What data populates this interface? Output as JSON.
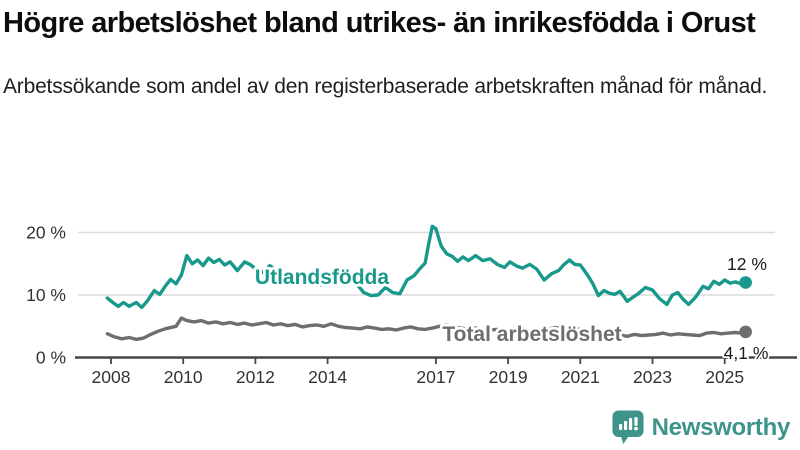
{
  "header": {
    "title": "Högre arbetslöshet bland utrikes- än inrikesfödda i Orust",
    "subtitle": "Arbetssökande som andel av den registerbaserade arbetskraften månad för månad."
  },
  "footer": {
    "brand": "Newsworthy"
  },
  "colors": {
    "accent_teal": "#18998C",
    "line_gray": "#6E6E6E",
    "grid": "#DBDBDB",
    "axis": "#474747",
    "text_dark": "#1a1a1a",
    "tick_text": "#333333",
    "logo_teal": "#3E948B",
    "halo": "#ffffff"
  },
  "chart_data": {
    "type": "line",
    "title": "Högre arbetslöshet bland utrikes- än inrikesfödda i Orust",
    "subtitle": "Arbetssökande som andel av den registerbaserade arbetskraften månad för månad.",
    "xlabel": "",
    "ylabel": "",
    "unit": "%",
    "xlim": [
      2007.8,
      2026.0
    ],
    "ylim": [
      0,
      22
    ],
    "grid": "horizontal",
    "legend": "inline-labels",
    "x_ticks": [
      {
        "t": 2008,
        "label": "2008"
      },
      {
        "t": 2010,
        "label": "2010"
      },
      {
        "t": 2012,
        "label": "2012"
      },
      {
        "t": 2014,
        "label": "2014"
      },
      {
        "t": 2017,
        "label": "2017"
      },
      {
        "t": 2019,
        "label": "2019"
      },
      {
        "t": 2021,
        "label": "2021"
      },
      {
        "t": 2023,
        "label": "2023"
      },
      {
        "t": 2025,
        "label": "2025"
      }
    ],
    "y_ticks": [
      {
        "v": 0,
        "label": "0 %"
      },
      {
        "v": 10,
        "label": "10 %"
      },
      {
        "v": 20,
        "label": "20 %"
      }
    ],
    "series": [
      {
        "name": "Total arbetslöshet",
        "color": "#6E6E6E",
        "end_annotation": "4,1 %",
        "end_value": 4.1,
        "points": [
          [
            2007.9,
            3.8
          ],
          [
            2008.1,
            3.3
          ],
          [
            2008.3,
            3.0
          ],
          [
            2008.5,
            3.2
          ],
          [
            2008.7,
            2.9
          ],
          [
            2008.9,
            3.1
          ],
          [
            2009.1,
            3.7
          ],
          [
            2009.3,
            4.2
          ],
          [
            2009.5,
            4.6
          ],
          [
            2009.8,
            5.0
          ],
          [
            2009.95,
            6.3
          ],
          [
            2010.1,
            5.9
          ],
          [
            2010.3,
            5.7
          ],
          [
            2010.5,
            5.9
          ],
          [
            2010.7,
            5.5
          ],
          [
            2010.9,
            5.7
          ],
          [
            2011.1,
            5.4
          ],
          [
            2011.3,
            5.6
          ],
          [
            2011.5,
            5.3
          ],
          [
            2011.7,
            5.5
          ],
          [
            2011.9,
            5.2
          ],
          [
            2012.1,
            5.4
          ],
          [
            2012.3,
            5.6
          ],
          [
            2012.5,
            5.2
          ],
          [
            2012.7,
            5.4
          ],
          [
            2012.9,
            5.1
          ],
          [
            2013.1,
            5.3
          ],
          [
            2013.3,
            4.9
          ],
          [
            2013.5,
            5.1
          ],
          [
            2013.7,
            5.2
          ],
          [
            2013.9,
            5.0
          ],
          [
            2014.1,
            5.4
          ],
          [
            2014.3,
            5.0
          ],
          [
            2014.5,
            4.8
          ],
          [
            2014.7,
            4.7
          ],
          [
            2014.9,
            4.6
          ],
          [
            2015.1,
            4.9
          ],
          [
            2015.3,
            4.7
          ],
          [
            2015.5,
            4.5
          ],
          [
            2015.7,
            4.6
          ],
          [
            2015.9,
            4.4
          ],
          [
            2016.1,
            4.7
          ],
          [
            2016.3,
            4.9
          ],
          [
            2016.5,
            4.6
          ],
          [
            2016.7,
            4.5
          ],
          [
            2016.9,
            4.7
          ],
          [
            2017.1,
            5.0
          ],
          [
            2017.3,
            5.2
          ],
          [
            2017.5,
            4.9
          ],
          [
            2017.7,
            4.7
          ],
          [
            2017.9,
            4.5
          ],
          [
            2018.1,
            4.7
          ],
          [
            2018.3,
            4.5
          ],
          [
            2018.5,
            4.4
          ],
          [
            2018.7,
            4.5
          ],
          [
            2018.9,
            4.3
          ],
          [
            2019.1,
            4.5
          ],
          [
            2019.3,
            4.2
          ],
          [
            2019.5,
            4.1
          ],
          [
            2019.7,
            4.2
          ],
          [
            2019.9,
            4.3
          ],
          [
            2020.1,
            4.5
          ],
          [
            2020.3,
            4.8
          ],
          [
            2020.5,
            4.6
          ],
          [
            2020.7,
            4.5
          ],
          [
            2020.9,
            4.6
          ],
          [
            2021.1,
            4.4
          ],
          [
            2021.3,
            4.2
          ],
          [
            2021.5,
            4.0
          ],
          [
            2021.7,
            3.8
          ],
          [
            2021.9,
            3.7
          ],
          [
            2022.1,
            3.6
          ],
          [
            2022.3,
            3.4
          ],
          [
            2022.5,
            3.7
          ],
          [
            2022.7,
            3.5
          ],
          [
            2022.9,
            3.6
          ],
          [
            2023.1,
            3.7
          ],
          [
            2023.3,
            3.9
          ],
          [
            2023.5,
            3.6
          ],
          [
            2023.7,
            3.8
          ],
          [
            2023.9,
            3.7
          ],
          [
            2024.1,
            3.6
          ],
          [
            2024.3,
            3.5
          ],
          [
            2024.5,
            3.9
          ],
          [
            2024.7,
            4.0
          ],
          [
            2024.9,
            3.8
          ],
          [
            2025.1,
            3.9
          ],
          [
            2025.3,
            4.0
          ],
          [
            2025.45,
            3.9
          ],
          [
            2025.58,
            4.1
          ]
        ]
      },
      {
        "name": "Utlandsfödda",
        "color": "#18998C",
        "end_annotation": "12 %",
        "end_value": 12,
        "points": [
          [
            2007.9,
            9.5
          ],
          [
            2008.05,
            8.8
          ],
          [
            2008.2,
            8.2
          ],
          [
            2008.35,
            8.8
          ],
          [
            2008.5,
            8.2
          ],
          [
            2008.7,
            8.8
          ],
          [
            2008.85,
            8.0
          ],
          [
            2009.0,
            9.0
          ],
          [
            2009.2,
            10.7
          ],
          [
            2009.35,
            10.1
          ],
          [
            2009.5,
            11.4
          ],
          [
            2009.65,
            12.5
          ],
          [
            2009.8,
            11.8
          ],
          [
            2009.95,
            13.2
          ],
          [
            2010.1,
            16.3
          ],
          [
            2010.25,
            15.0
          ],
          [
            2010.4,
            15.6
          ],
          [
            2010.55,
            14.7
          ],
          [
            2010.7,
            15.9
          ],
          [
            2010.85,
            15.2
          ],
          [
            2011.0,
            15.7
          ],
          [
            2011.15,
            14.8
          ],
          [
            2011.3,
            15.3
          ],
          [
            2011.5,
            13.9
          ],
          [
            2011.7,
            15.3
          ],
          [
            2011.85,
            14.9
          ],
          [
            2012.0,
            14.2
          ],
          [
            2012.2,
            13.6
          ],
          [
            2012.4,
            14.7
          ],
          [
            2012.6,
            13.8
          ],
          [
            2012.8,
            13.1
          ],
          [
            2013.0,
            12.2
          ],
          [
            2013.2,
            13.6
          ],
          [
            2013.4,
            12.9
          ],
          [
            2013.6,
            12.4
          ],
          [
            2013.8,
            11.6
          ],
          [
            2014.0,
            12.5
          ],
          [
            2014.2,
            11.7
          ],
          [
            2014.4,
            12.9
          ],
          [
            2014.6,
            12.4
          ],
          [
            2014.8,
            11.8
          ],
          [
            2015.0,
            10.4
          ],
          [
            2015.2,
            9.9
          ],
          [
            2015.4,
            10.0
          ],
          [
            2015.6,
            11.2
          ],
          [
            2015.8,
            10.4
          ],
          [
            2016.0,
            10.2
          ],
          [
            2016.2,
            12.4
          ],
          [
            2016.4,
            13.1
          ],
          [
            2016.55,
            14.2
          ],
          [
            2016.7,
            15.1
          ],
          [
            2016.8,
            18.2
          ],
          [
            2016.9,
            21.0
          ],
          [
            2017.0,
            20.6
          ],
          [
            2017.15,
            17.8
          ],
          [
            2017.3,
            16.6
          ],
          [
            2017.45,
            16.2
          ],
          [
            2017.6,
            15.4
          ],
          [
            2017.75,
            16.1
          ],
          [
            2017.9,
            15.5
          ],
          [
            2018.1,
            16.3
          ],
          [
            2018.3,
            15.5
          ],
          [
            2018.5,
            15.8
          ],
          [
            2018.7,
            14.9
          ],
          [
            2018.9,
            14.4
          ],
          [
            2019.05,
            15.3
          ],
          [
            2019.25,
            14.6
          ],
          [
            2019.4,
            14.3
          ],
          [
            2019.6,
            14.9
          ],
          [
            2019.8,
            14.1
          ],
          [
            2020.0,
            12.4
          ],
          [
            2020.2,
            13.4
          ],
          [
            2020.4,
            13.9
          ],
          [
            2020.55,
            14.9
          ],
          [
            2020.7,
            15.6
          ],
          [
            2020.85,
            14.9
          ],
          [
            2021.0,
            14.8
          ],
          [
            2021.2,
            13.2
          ],
          [
            2021.35,
            11.8
          ],
          [
            2021.5,
            9.9
          ],
          [
            2021.65,
            10.7
          ],
          [
            2021.8,
            10.3
          ],
          [
            2021.95,
            10.1
          ],
          [
            2022.1,
            10.6
          ],
          [
            2022.3,
            9.0
          ],
          [
            2022.45,
            9.6
          ],
          [
            2022.6,
            10.2
          ],
          [
            2022.8,
            11.2
          ],
          [
            2023.0,
            10.8
          ],
          [
            2023.2,
            9.4
          ],
          [
            2023.4,
            8.5
          ],
          [
            2023.55,
            10.0
          ],
          [
            2023.7,
            10.4
          ],
          [
            2023.85,
            9.3
          ],
          [
            2024.0,
            8.5
          ],
          [
            2024.2,
            9.7
          ],
          [
            2024.4,
            11.4
          ],
          [
            2024.55,
            11.0
          ],
          [
            2024.7,
            12.2
          ],
          [
            2024.85,
            11.7
          ],
          [
            2025.0,
            12.4
          ],
          [
            2025.15,
            11.9
          ],
          [
            2025.3,
            12.1
          ],
          [
            2025.45,
            11.8
          ],
          [
            2025.58,
            12.0
          ]
        ]
      }
    ]
  }
}
